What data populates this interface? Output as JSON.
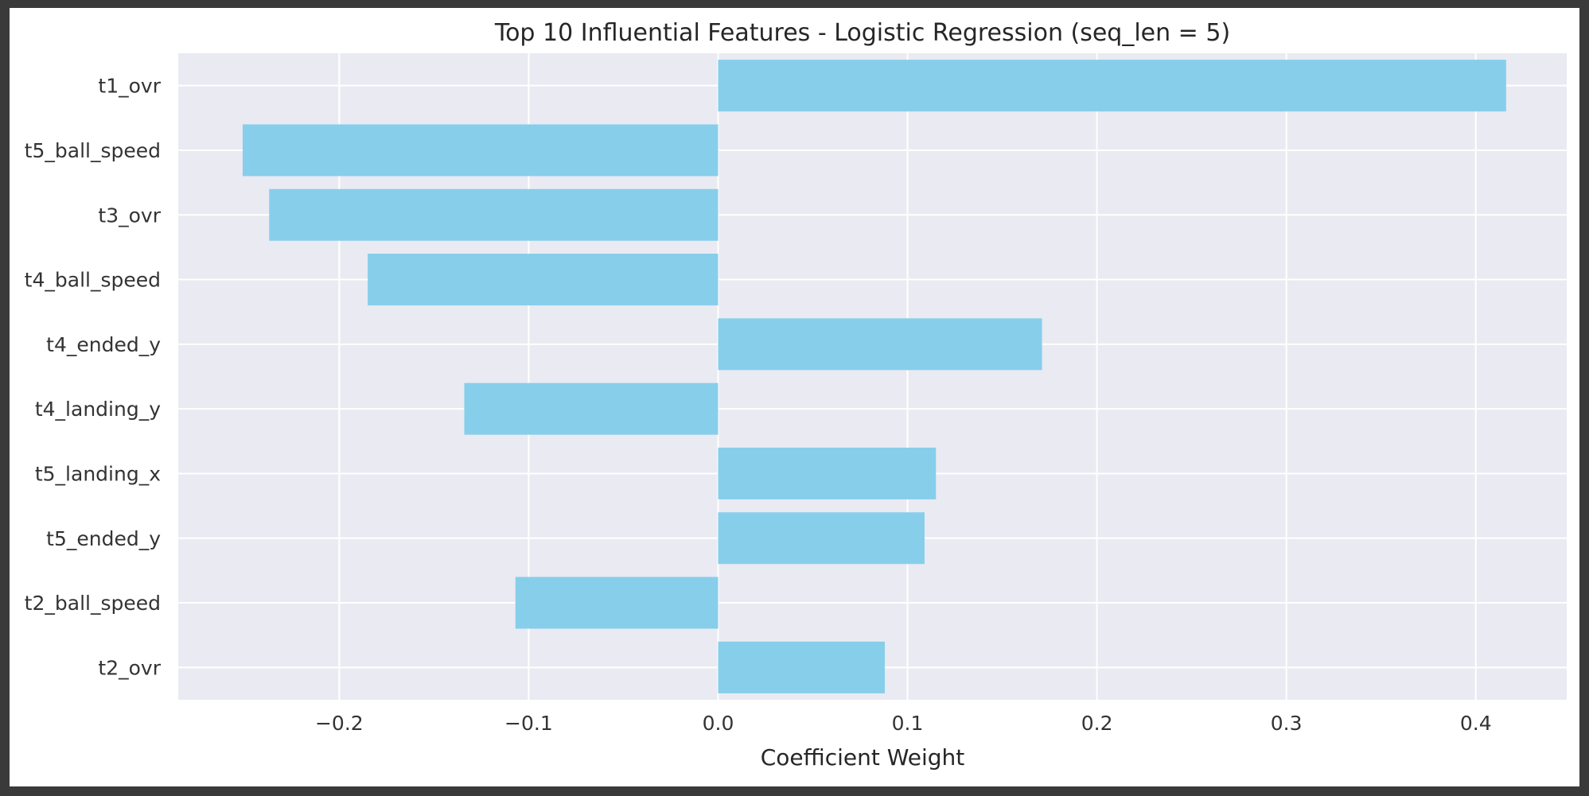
{
  "chart_data": {
    "type": "bar",
    "orientation": "horizontal",
    "title": "Top 10 Influential Features - Logistic Regression (seq_len = 5)",
    "xlabel": "Coefficient Weight",
    "ylabel": "",
    "categories": [
      "t1_ovr",
      "t5_ball_speed",
      "t3_ovr",
      "t4_ball_speed",
      "t4_ended_y",
      "t4_landing_y",
      "t5_landing_x",
      "t5_ended_y",
      "t2_ball_speed",
      "t2_ovr"
    ],
    "values": [
      0.416,
      -0.251,
      -0.237,
      -0.185,
      0.171,
      -0.134,
      0.115,
      0.109,
      -0.107,
      0.088
    ],
    "xlim": [
      -0.285,
      0.448
    ],
    "xticks": [
      -0.2,
      -0.1,
      0.0,
      0.1,
      0.2,
      0.3,
      0.4
    ],
    "xtick_labels": [
      "−0.2",
      "−0.1",
      "0.0",
      "0.1",
      "0.2",
      "0.3",
      "0.4"
    ],
    "bar_color": "#87CEEB",
    "plot_background": "#EAEAF2",
    "grid": true,
    "grid_color": "#FFFFFF"
  }
}
